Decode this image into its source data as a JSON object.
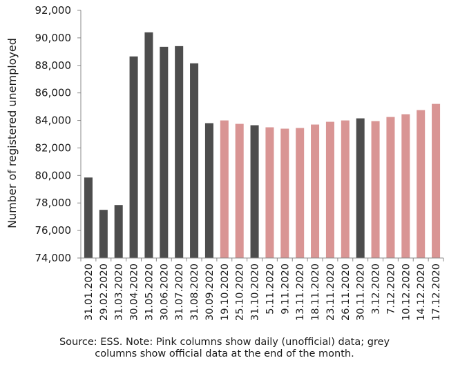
{
  "chart_data": {
    "type": "bar",
    "title": "",
    "xlabel": "",
    "ylabel": "Number of registered unemployed",
    "ylim": [
      74000,
      92000
    ],
    "yticks": [
      74000,
      76000,
      78000,
      80000,
      82000,
      84000,
      86000,
      88000,
      90000,
      92000
    ],
    "ytick_labels": [
      "74,000",
      "76,000",
      "78,000",
      "80,000",
      "82,000",
      "84,000",
      "86,000",
      "88,000",
      "90,000",
      "92,000"
    ],
    "grid": false,
    "categories": [
      "31.01.2020",
      "29.02.2020",
      "31.03.2020",
      "30.04.2020",
      "31.05.2020",
      "30.06.2020",
      "31.07.2020",
      "31.08.2020",
      "30.09.2020",
      "19.10.2020",
      "25.10.2020",
      "31.10.2020",
      "5.11.2020",
      "9.11.2020",
      "13.11.2020",
      "18.11.2020",
      "23.11.2020",
      "26.11.2020",
      "30.11.2020",
      "3.12.2020",
      "7.12.2020",
      "10.12.2020",
      "14.12.2020",
      "17.12.2020"
    ],
    "values": [
      79850,
      77500,
      77850,
      88650,
      90400,
      89350,
      89400,
      88150,
      83800,
      84000,
      83750,
      83650,
      83500,
      83400,
      83450,
      83700,
      83900,
      84000,
      84150,
      83950,
      84250,
      84450,
      84750,
      85200
    ],
    "kinds": [
      "official",
      "official",
      "official",
      "official",
      "official",
      "official",
      "official",
      "official",
      "official",
      "daily",
      "daily",
      "official",
      "daily",
      "daily",
      "daily",
      "daily",
      "daily",
      "daily",
      "official",
      "daily",
      "daily",
      "daily",
      "daily",
      "daily"
    ],
    "colors": {
      "official": "#4d4d4d",
      "daily": "#d99594",
      "axis": "#888888"
    }
  },
  "caption": {
    "line1": "Source: ESS. Note: Pink columns show daily (unofficial) data; grey",
    "line2": "columns show official data at the end of the month."
  }
}
